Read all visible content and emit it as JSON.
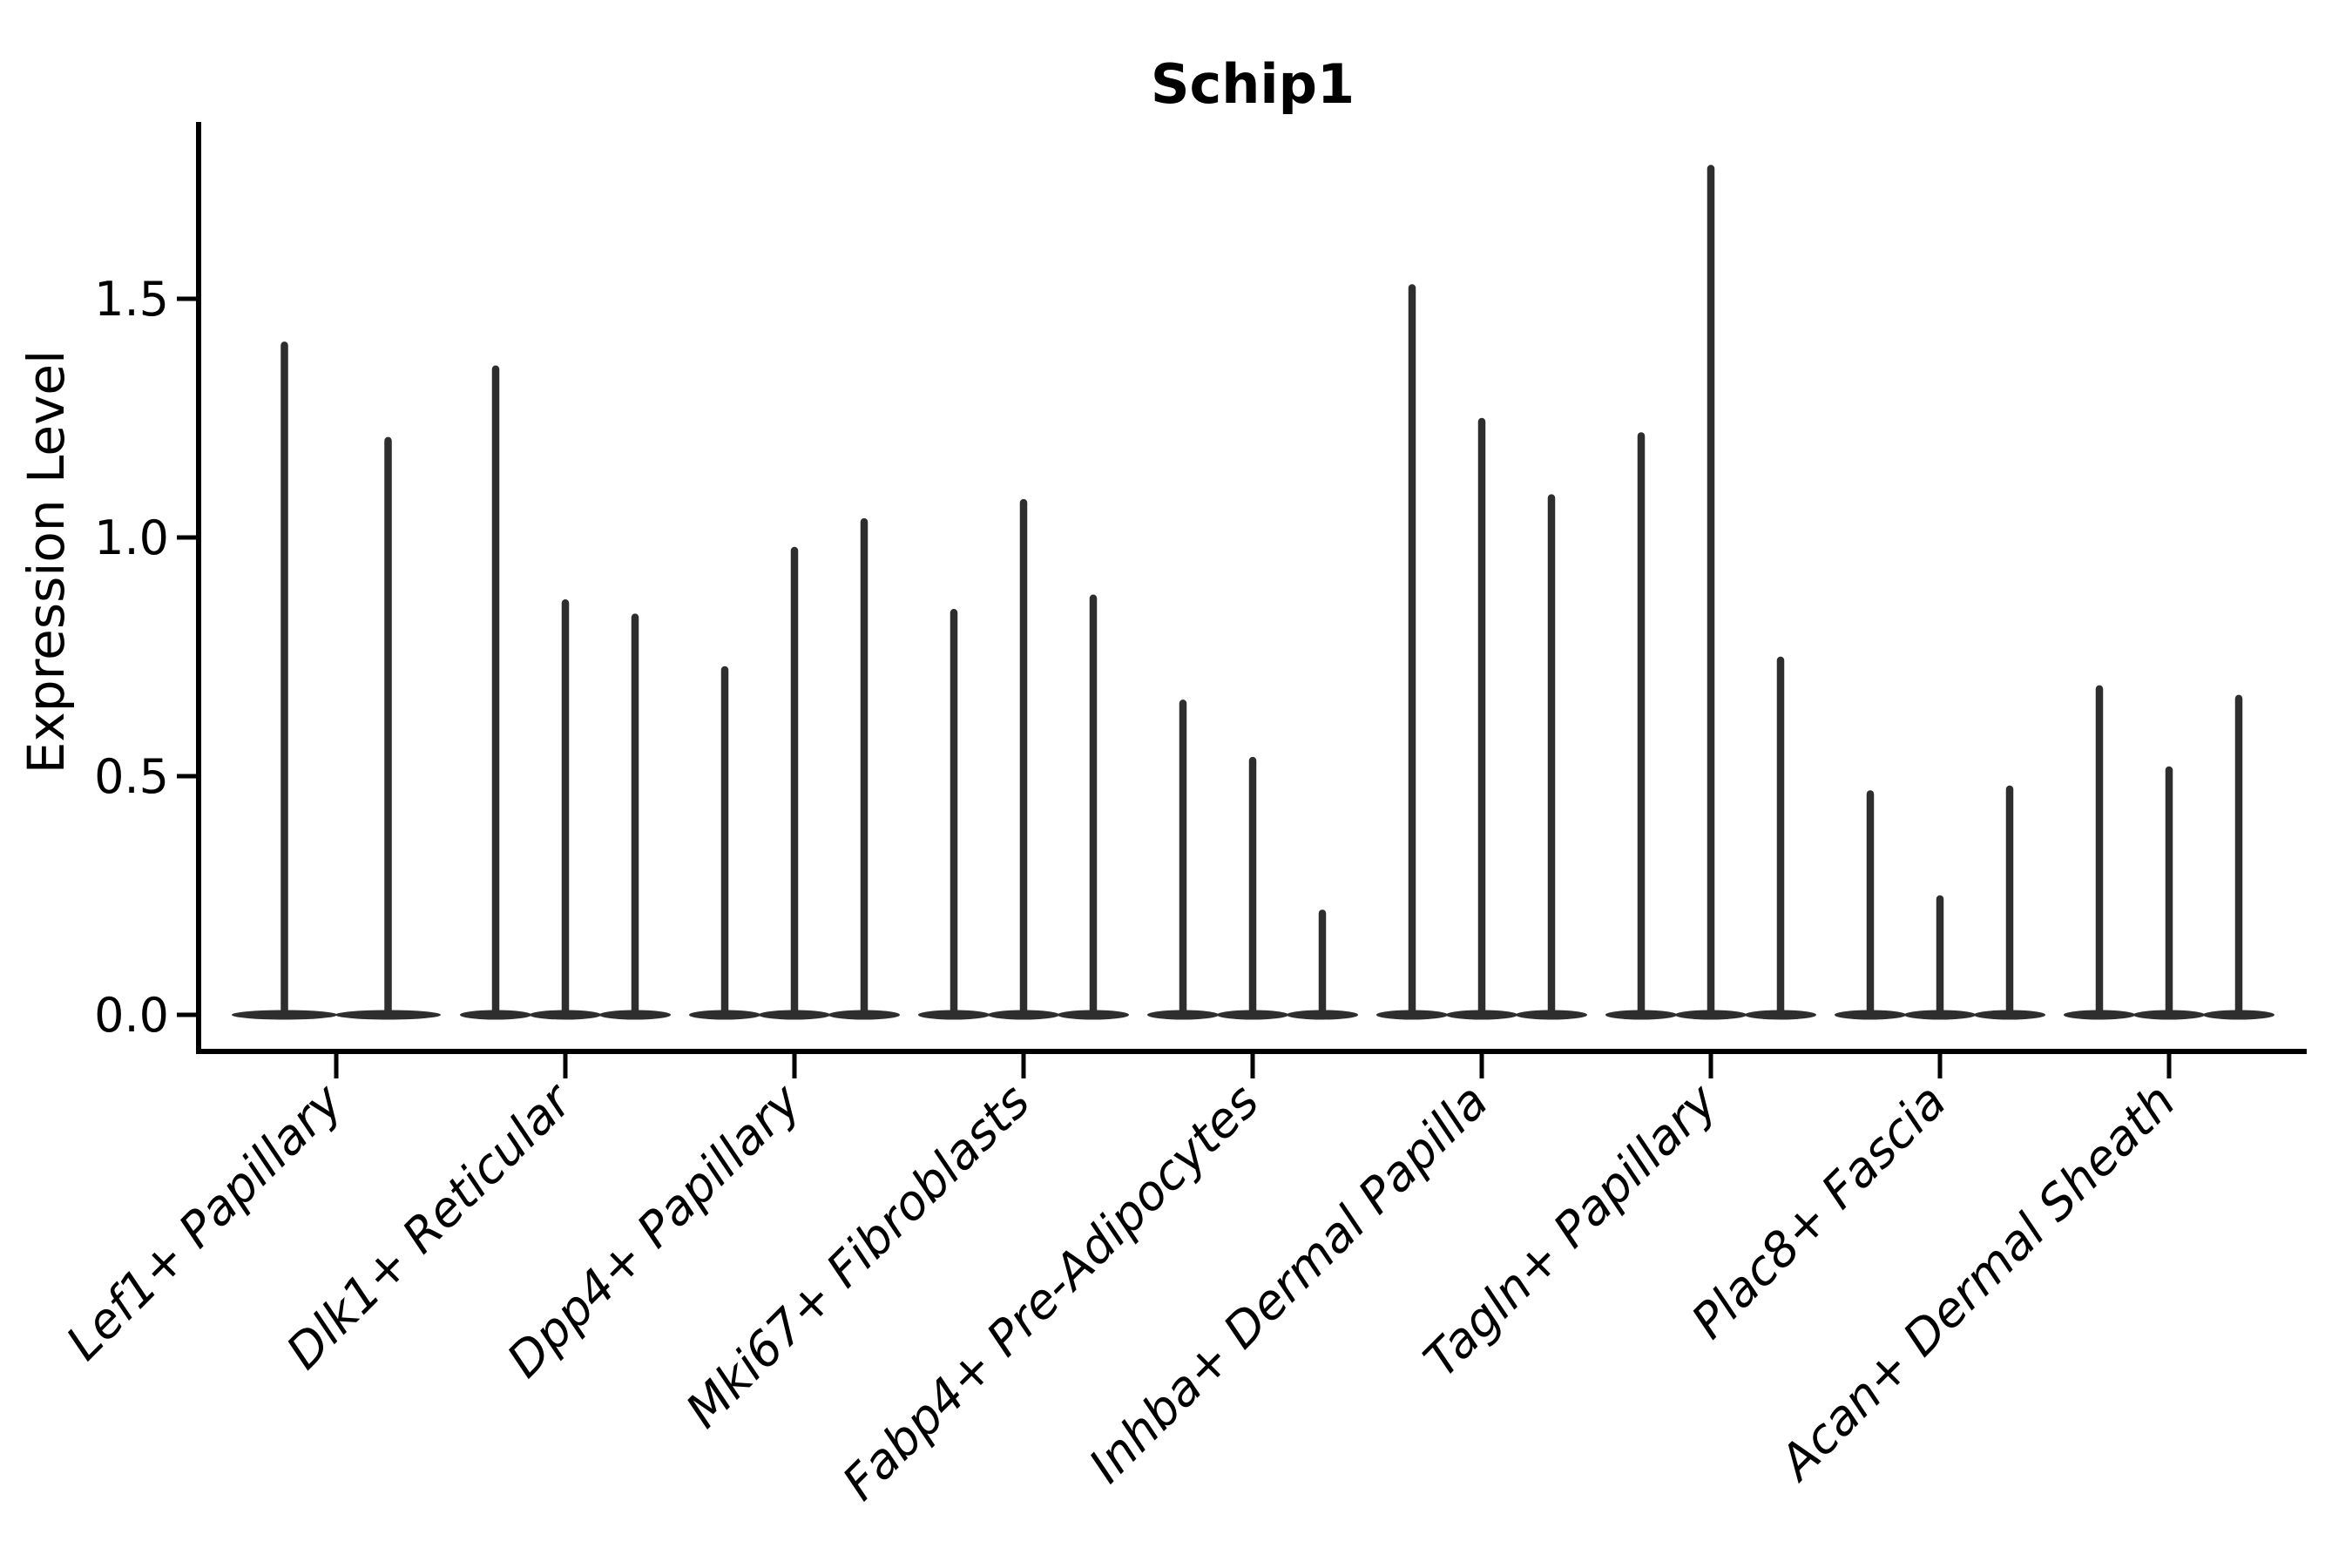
{
  "figure": {
    "title": "Schip1",
    "ylabel": "Expression Level"
  },
  "chart_data": {
    "type": "violin",
    "title": "Schip1",
    "xlabel": "",
    "ylabel": "Expression Level",
    "grid": false,
    "legend": false,
    "yticks": [
      0.0,
      0.5,
      1.0,
      1.5
    ],
    "ytick_labels": [
      "0.0",
      "0.5",
      "1.0",
      "1.5"
    ],
    "ylim": [
      -0.08,
      1.87
    ],
    "categories": [
      "Lef1+ Papillary",
      "Dlk1+ Reticular",
      "Dpp4+ Papillary",
      "Mki67+ Fibroblasts",
      "Fabp4+ Pre-Adipocytes",
      "Inhba+ Dermal Papilla",
      "Tagln+ Papillary",
      "Plac8+ Fascia",
      "Acan+ Dermal Sheath"
    ],
    "series": [
      {
        "category": "Lef1+ Papillary",
        "violin_max_values": [
          1.41,
          1.21
        ]
      },
      {
        "category": "Dlk1+ Reticular",
        "violin_max_values": [
          1.36,
          0.87,
          0.84
        ]
      },
      {
        "category": "Dpp4+ Papillary",
        "violin_max_values": [
          0.73,
          0.98,
          1.04
        ]
      },
      {
        "category": "Mki67+ Fibroblasts",
        "violin_max_values": [
          0.85,
          1.08,
          0.88
        ]
      },
      {
        "category": "Fabp4+ Pre-Adipocytes",
        "violin_max_values": [
          0.66,
          0.54,
          0.22
        ]
      },
      {
        "category": "Inhba+ Dermal Papilla",
        "violin_max_values": [
          1.53,
          1.25,
          1.09
        ]
      },
      {
        "category": "Tagln+ Papillary",
        "violin_max_values": [
          1.22,
          1.78,
          0.75
        ]
      },
      {
        "category": "Plac8+ Fascia",
        "violin_max_values": [
          0.47,
          0.25,
          0.48
        ]
      },
      {
        "category": "Acan+ Dermal Sheath",
        "violin_max_values": [
          0.69,
          0.52,
          0.67
        ]
      }
    ],
    "violin_shape_note": "Violins are nearly zero-width spikes with a wide flat base at expression 0 (sparse expression)",
    "style": {
      "violin_color": "#2e2e2e",
      "axis_color": "#000000",
      "text_color": "#000000",
      "background": "#ffffff"
    }
  }
}
